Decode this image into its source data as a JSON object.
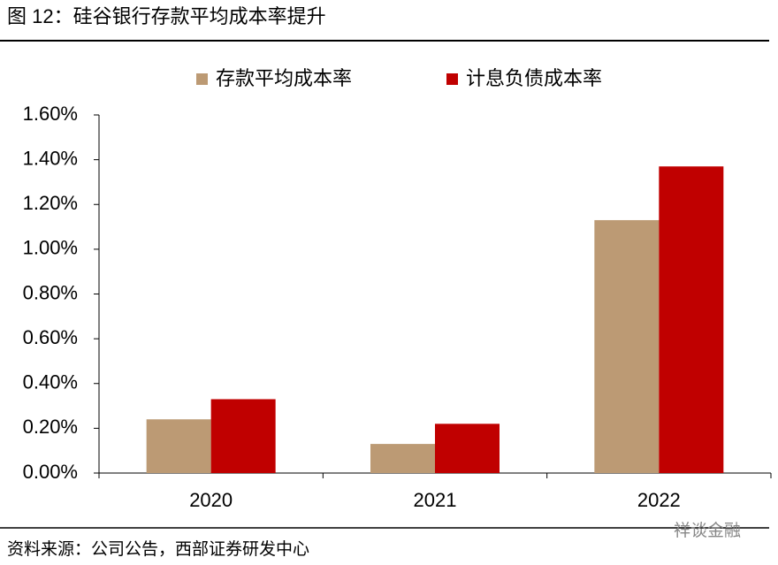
{
  "chart_data": {
    "type": "bar",
    "title": "图 12：硅谷银行存款平均成本率提升",
    "categories": [
      "2020",
      "2021",
      "2022"
    ],
    "series": [
      {
        "name": "存款平均成本率",
        "color": "#BC9A74",
        "values": [
          0.24,
          0.13,
          1.13
        ]
      },
      {
        "name": "计息负债成本率",
        "color": "#C00000",
        "values": [
          0.33,
          0.22,
          1.37
        ]
      }
    ],
    "ylim": [
      0,
      1.6
    ],
    "yticks": [
      {
        "value": 0,
        "label": "0.00%"
      },
      {
        "value": 0.2,
        "label": "0.20%"
      },
      {
        "value": 0.4,
        "label": "0.40%"
      },
      {
        "value": 0.6,
        "label": "0.60%"
      },
      {
        "value": 0.8,
        "label": "0.80%"
      },
      {
        "value": 1.0,
        "label": "1.00%"
      },
      {
        "value": 1.2,
        "label": "1.20%"
      },
      {
        "value": 1.4,
        "label": "1.40%"
      },
      {
        "value": 1.6,
        "label": "1.60%"
      }
    ],
    "source": "资料来源：公司公告，西部证券研发中心",
    "watermark": "祥谈金融"
  }
}
